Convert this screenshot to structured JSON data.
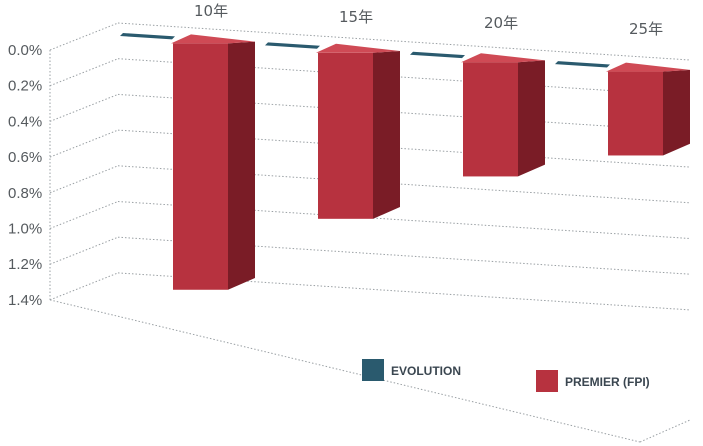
{
  "chart_data": {
    "type": "bar",
    "categories": [
      "10年",
      "15年",
      "20年",
      "25年"
    ],
    "series": [
      {
        "name": "EVOLUTION",
        "values": [
          0.0,
          0.0,
          0.0,
          0.0
        ]
      },
      {
        "name": "PREMIER (FPI)",
        "values": [
          1.38,
          0.93,
          0.64,
          0.47
        ]
      }
    ],
    "y_ticks": [
      "0.0%",
      "0.2%",
      "0.4%",
      "0.6%",
      "0.8%",
      "1.0%",
      "1.2%",
      "1.4%"
    ],
    "ylim": [
      0,
      1.4
    ],
    "y_inverted": true,
    "grid": true,
    "legend_position": "bottom-right",
    "colors": {
      "evolution": "#2a5a6e",
      "premier": "#b7323f",
      "premier_side": "#7a1c26",
      "premier_top": "#cf4a55",
      "grid": "#9aa0a4"
    }
  }
}
